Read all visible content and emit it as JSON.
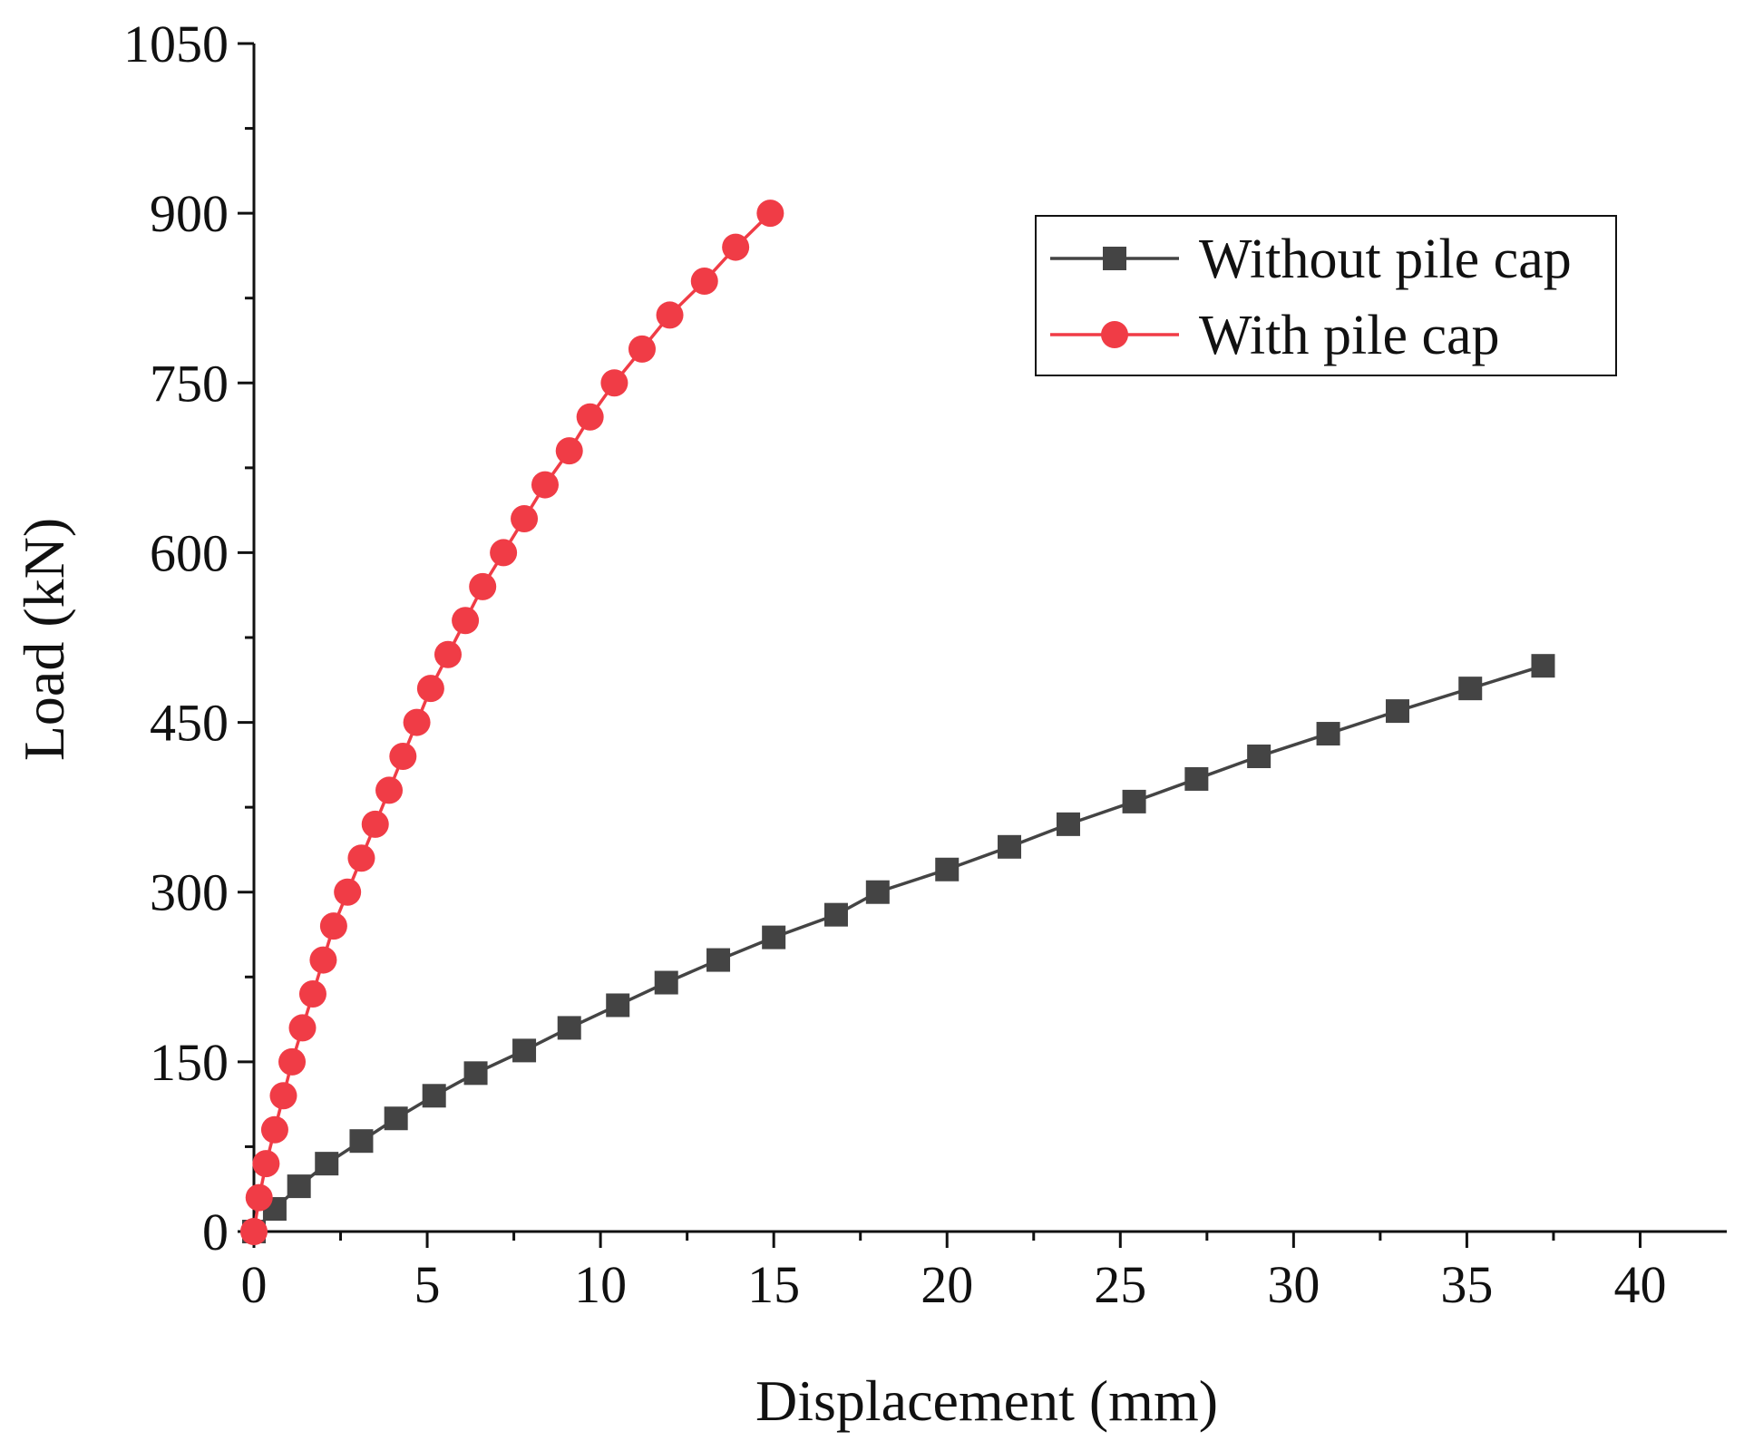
{
  "chart_data": {
    "type": "line",
    "xlabel": "Displacement (mm)",
    "ylabel": "Load (kN)",
    "xlim": [
      0,
      42.5
    ],
    "ylim": [
      0,
      1050
    ],
    "xticks": [
      0,
      5,
      10,
      15,
      20,
      25,
      30,
      35,
      40
    ],
    "yticks": [
      0,
      150,
      300,
      450,
      600,
      750,
      900,
      1050
    ],
    "grid": false,
    "legend_position": "top-right",
    "series": [
      {
        "name": "Without pile cap",
        "color": "#444444",
        "marker": "square",
        "x": [
          0,
          0.6,
          1.3,
          2.1,
          3.1,
          4.1,
          5.2,
          6.4,
          7.8,
          9.1,
          10.5,
          11.9,
          13.4,
          15.0,
          16.8,
          18.0,
          20.0,
          21.8,
          23.5,
          25.4,
          27.2,
          29.0,
          31.0,
          33.0,
          35.1,
          37.2
        ],
        "y": [
          0,
          20,
          40,
          60,
          80,
          100,
          120,
          140,
          160,
          180,
          200,
          220,
          240,
          260,
          280,
          300,
          320,
          340,
          360,
          380,
          400,
          420,
          440,
          460,
          480,
          500
        ]
      },
      {
        "name": "With pile cap",
        "color": "#f03c46",
        "marker": "circle",
        "x": [
          0,
          0.15,
          0.35,
          0.6,
          0.85,
          1.1,
          1.4,
          1.7,
          2.0,
          2.3,
          2.7,
          3.1,
          3.5,
          3.9,
          4.3,
          4.7,
          5.1,
          5.6,
          6.1,
          6.6,
          7.2,
          7.8,
          8.4,
          9.1,
          9.7,
          10.4,
          11.2,
          12.0,
          13.0,
          13.9,
          14.9
        ],
        "y": [
          0,
          30,
          60,
          90,
          120,
          150,
          180,
          210,
          240,
          270,
          300,
          330,
          360,
          390,
          420,
          450,
          480,
          510,
          540,
          570,
          600,
          630,
          660,
          690,
          720,
          750,
          780,
          810,
          840,
          870,
          900
        ]
      }
    ]
  }
}
